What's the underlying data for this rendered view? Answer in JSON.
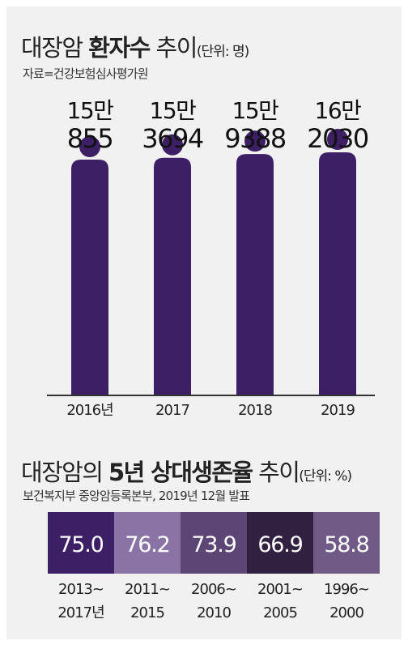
{
  "colors": {
    "bar": "#3d1f66",
    "background": "#f1f1f1",
    "text": "#222222",
    "box_colors": [
      "#3d1f66",
      "#8a74a6",
      "#5c4676",
      "#322040",
      "#705a86"
    ]
  },
  "chart1": {
    "title_plain": "대장암 ",
    "title_bold": "환자수",
    "title_rest": " 추이",
    "unit": "(단위: 명)",
    "source": "자료=건강보험심사평가원",
    "chart_data": {
      "type": "bar",
      "categories": [
        "2016년",
        "2017",
        "2018",
        "2019"
      ],
      "values": [
        150855,
        153694,
        159388,
        162030
      ],
      "value_labels": [
        [
          "15만",
          "855"
        ],
        [
          "15만",
          "3694"
        ],
        [
          "15만",
          "9388"
        ],
        [
          "16만",
          "2030"
        ]
      ]
    }
  },
  "chart2": {
    "title_plain": "대장암의 ",
    "title_bold": "5년 상대생존율",
    "title_rest": " 추이",
    "unit": "(단위: %)",
    "source": "보건복지부 중앙암등록본부, 2019년 12월 발표",
    "chart_data": {
      "type": "table",
      "categories": [
        [
          "2013~",
          "2017년"
        ],
        [
          "2011~",
          "2015"
        ],
        [
          "2006~",
          "2010"
        ],
        [
          "2001~",
          "2005"
        ],
        [
          "1996~",
          "2000"
        ]
      ],
      "values": [
        75.0,
        76.2,
        73.9,
        66.9,
        58.8
      ],
      "value_labels": [
        "75.0",
        "76.2",
        "73.9",
        "66.9",
        "58.8"
      ]
    }
  }
}
